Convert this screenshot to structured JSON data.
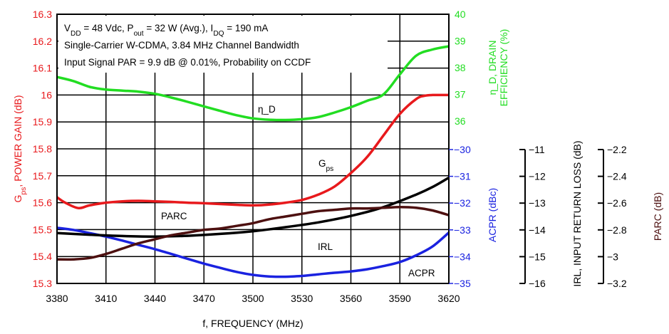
{
  "colors": {
    "gain": "#e8191c",
    "efficiency": "#22dd22",
    "acpr": "#1a22e0",
    "irl": "#000000",
    "parc": "#4d1010"
  },
  "chart_data": {
    "type": "line",
    "conditions": [
      "V_DD = 48 Vdc, P_out = 32 W (Avg.), I_DQ = 190 mA",
      "Single-Carrier W-CDMA, 3.84 MHz Channel Bandwidth",
      "Input Signal PAR = 9.9 dB @ 0.01%, Probability on CCDF"
    ],
    "xlabel": "f, FREQUENCY (MHz)",
    "x_ticks": [
      3380,
      3410,
      3440,
      3470,
      3500,
      3530,
      3560,
      3590,
      3620
    ],
    "xlim": [
      3380,
      3620
    ],
    "axes": {
      "gain": {
        "label": "G_ps, POWER GAIN (dB)",
        "range": [
          15.3,
          16.3
        ],
        "ticks": [
          "15.3",
          "15.4",
          "15.5",
          "15.6",
          "15.7",
          "15.8",
          "15.9",
          "16",
          "16.1",
          "16.2",
          "16.3"
        ]
      },
      "efficiency": {
        "label_line1": "η_D, DRAIN",
        "label_line2": "EFFICIENCY (%)",
        "range": [
          36,
          40
        ],
        "ticks": [
          "36",
          "37",
          "38",
          "39",
          "40"
        ]
      },
      "acpr": {
        "label": "ACPR (dBc)",
        "range": [
          -35,
          -30
        ],
        "ticks": [
          "−30",
          "−31",
          "−32",
          "−33",
          "−34",
          "−35"
        ]
      },
      "irl": {
        "label": "IRL, INPUT RETURN LOSS (dB)",
        "range": [
          -16,
          -11
        ],
        "ticks": [
          "−11",
          "−12",
          "−13",
          "−14",
          "−15",
          "−16"
        ]
      },
      "parc": {
        "label": "PARC (dB)",
        "range": [
          -3.2,
          -2.2
        ],
        "ticks": [
          "−2.2",
          "−2.4",
          "−2.6",
          "−2.8",
          "−3",
          "−3.2"
        ]
      }
    },
    "series": [
      {
        "name": "G_ps",
        "axis": "gain",
        "x": [
          3380,
          3385,
          3393,
          3400,
          3410,
          3420,
          3430,
          3440,
          3450,
          3460,
          3470,
          3480,
          3490,
          3500,
          3510,
          3520,
          3530,
          3540,
          3550,
          3560,
          3570,
          3580,
          3590,
          3600,
          3605,
          3610,
          3620
        ],
        "y": [
          15.62,
          15.6,
          15.58,
          15.59,
          15.6,
          15.605,
          15.607,
          15.605,
          15.603,
          15.6,
          15.598,
          15.595,
          15.592,
          15.59,
          15.593,
          15.6,
          15.61,
          15.63,
          15.66,
          15.71,
          15.77,
          15.85,
          15.93,
          15.985,
          15.997,
          16.0,
          16.0
        ]
      },
      {
        "name": "η_D",
        "axis": "efficiency",
        "x": [
          3380,
          3390,
          3400,
          3410,
          3420,
          3430,
          3440,
          3450,
          3460,
          3470,
          3480,
          3490,
          3500,
          3510,
          3520,
          3530,
          3540,
          3550,
          3560,
          3570,
          3580,
          3590,
          3600,
          3610,
          3620
        ],
        "y": [
          37.65,
          37.5,
          37.28,
          37.18,
          37.14,
          37.1,
          37.02,
          36.88,
          36.72,
          36.55,
          36.38,
          36.22,
          36.1,
          36.05,
          36.04,
          36.07,
          36.15,
          36.32,
          36.52,
          36.76,
          37.0,
          37.75,
          38.45,
          38.68,
          38.8
        ]
      },
      {
        "name": "ACPR",
        "axis": "acpr",
        "x": [
          3380,
          3390,
          3400,
          3410,
          3420,
          3430,
          3440,
          3450,
          3460,
          3470,
          3480,
          3490,
          3500,
          3510,
          3520,
          3530,
          3540,
          3550,
          3560,
          3570,
          3580,
          3590,
          3600,
          3610,
          3620
        ],
        "y": [
          -32.92,
          -33.0,
          -33.12,
          -33.25,
          -33.4,
          -33.56,
          -33.72,
          -33.9,
          -34.08,
          -34.26,
          -34.42,
          -34.57,
          -34.68,
          -34.74,
          -34.75,
          -34.72,
          -34.66,
          -34.6,
          -34.55,
          -34.47,
          -34.35,
          -34.2,
          -33.95,
          -33.62,
          -33.1
        ]
      },
      {
        "name": "IRL",
        "axis": "irl",
        "x": [
          3380,
          3400,
          3420,
          3440,
          3460,
          3480,
          3500,
          3520,
          3540,
          3560,
          3580,
          3600,
          3610,
          3620
        ],
        "y": [
          -14.12,
          -14.18,
          -14.23,
          -14.25,
          -14.22,
          -14.15,
          -14.05,
          -13.9,
          -13.72,
          -13.48,
          -13.15,
          -12.68,
          -12.4,
          -12.05
        ]
      },
      {
        "name": "PARC",
        "axis": "parc",
        "x": [
          3380,
          3390,
          3400,
          3410,
          3420,
          3430,
          3440,
          3450,
          3460,
          3470,
          3480,
          3490,
          3500,
          3510,
          3520,
          3530,
          3540,
          3550,
          3560,
          3570,
          3580,
          3590,
          3600,
          3610,
          3620
        ],
        "y": [
          -3.02,
          -3.02,
          -3.01,
          -2.98,
          -2.94,
          -2.9,
          -2.87,
          -2.84,
          -2.82,
          -2.8,
          -2.79,
          -2.77,
          -2.75,
          -2.72,
          -2.7,
          -2.68,
          -2.66,
          -2.65,
          -2.64,
          -2.64,
          -2.635,
          -2.63,
          -2.635,
          -2.655,
          -2.69
        ]
      }
    ],
    "annotations": {
      "eta": "η_D",
      "gps": "G_ps",
      "parc": "PARC",
      "irl": "IRL",
      "acpr": "ACPR"
    },
    "grid": true
  }
}
